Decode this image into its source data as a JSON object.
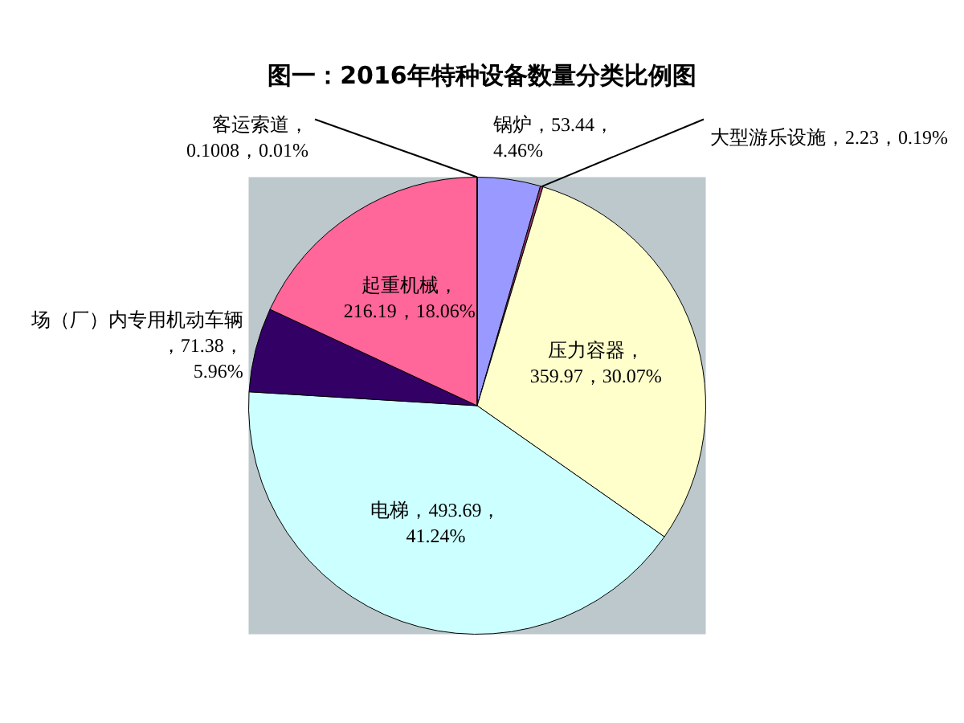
{
  "chart_data": {
    "type": "pie",
    "title": "图一：2016年特种设备数量分类比例图",
    "categories": [
      "锅炉",
      "大型游乐设施",
      "压力容器",
      "电梯",
      "场（厂）内专用机动车辆",
      "起重机械",
      "客运索道"
    ],
    "values": [
      53.44,
      2.23,
      359.97,
      493.69,
      71.38,
      216.19,
      0.1008
    ],
    "value_labels": [
      "，53.44，\n4.46%",
      "，2.23，0.19%",
      "，\n359.97，30.07%",
      "，493.69，\n41.24%",
      "\n，71.38，\n5.96%",
      "，\n216.19，18.06%",
      "，\n0.1008，0.01%"
    ],
    "colors": [
      "#9999ff",
      "#993366",
      "#ffffcc",
      "#ccffff",
      "#330066",
      "#ff6699",
      "#000080"
    ],
    "legend": false
  }
}
